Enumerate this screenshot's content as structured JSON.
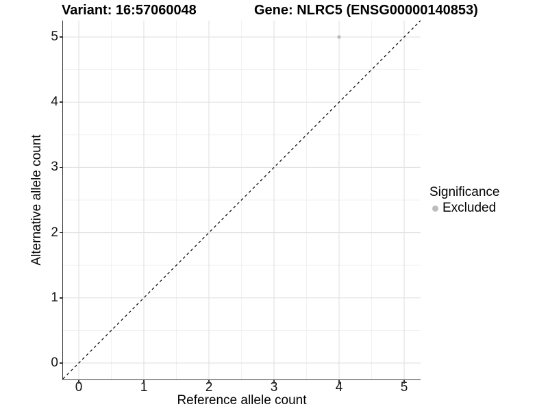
{
  "header": {
    "variant_title": "Variant: 16:57060048",
    "gene_title": "Gene: NLRC5 (ENSG00000140853)"
  },
  "axes": {
    "x": {
      "label": "Reference allele count",
      "ticks": [
        "0",
        "1",
        "2",
        "3",
        "4",
        "5"
      ]
    },
    "y": {
      "label": "Alternative allele count",
      "ticks": [
        "0",
        "1",
        "2",
        "3",
        "4",
        "5"
      ]
    }
  },
  "legend": {
    "title": "Significance",
    "items": [
      {
        "label": "Excluded",
        "color": "#bdbdbd"
      }
    ]
  },
  "chart_data": {
    "type": "scatter",
    "title": "Variant: 16:57060048 | Gene: NLRC5 (ENSG00000140853)",
    "xlabel": "Reference allele count",
    "ylabel": "Alternative allele count",
    "xlim": [
      -0.25,
      5.25
    ],
    "ylim": [
      -0.25,
      5.25
    ],
    "x_ticks": [
      0,
      1,
      2,
      3,
      4,
      5
    ],
    "y_ticks": [
      0,
      1,
      2,
      3,
      4,
      5
    ],
    "grid": "major and minor, light gray on white",
    "legend_position": "right",
    "series": [
      {
        "name": "Excluded",
        "color": "#bdbdbd",
        "points": [
          {
            "x": 4,
            "y": 5
          }
        ]
      }
    ],
    "reference_line": {
      "type": "identity",
      "slope": 1,
      "intercept": 0,
      "style": "dashed",
      "color": "#000000"
    }
  }
}
